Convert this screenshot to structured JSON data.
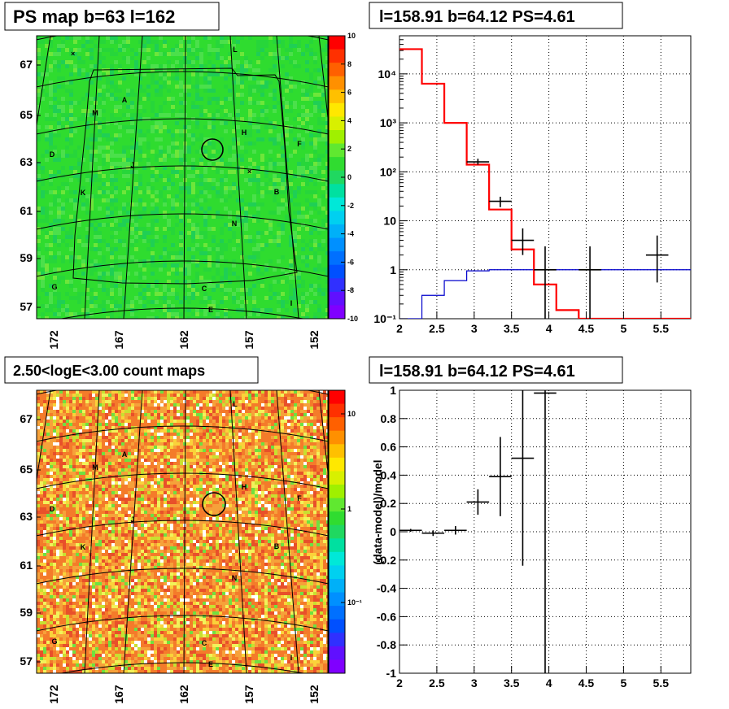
{
  "panels": {
    "ps_map": {
      "title": "PS map b=63 l=162",
      "y_ticks": [
        "67",
        "65",
        "63",
        "61",
        "59",
        "57"
      ],
      "x_ticks": [
        "172",
        "167",
        "162",
        "157",
        "152"
      ],
      "colorbar_ticks": [
        "10",
        "8",
        "6",
        "4",
        "2",
        "0",
        "-2",
        "-4",
        "-6",
        "-8",
        "-10"
      ]
    },
    "count_map": {
      "title": "2.50<logE<3.00 count maps",
      "y_ticks": [
        "67",
        "65",
        "63",
        "61",
        "59",
        "57"
      ],
      "x_ticks": [
        "172",
        "167",
        "162",
        "157",
        "152"
      ],
      "colorbar_ticks": [
        "10",
        "1",
        "10⁻¹"
      ]
    },
    "region_labels": [
      "L",
      "A",
      "M",
      "H",
      "F",
      "D",
      "J",
      "K",
      "B",
      "N",
      "G",
      "C",
      "I",
      "E"
    ]
  },
  "chart_data": [
    {
      "type": "line",
      "title": "l=158.91 b=64.12 PS=4.61",
      "xlabel": "",
      "ylabel": "",
      "yscale": "log",
      "xlim": [
        2,
        5.9
      ],
      "ylim": [
        0.1,
        60000
      ],
      "x_ticks": [
        "2",
        "2.5",
        "3",
        "3.5",
        "4",
        "4.5",
        "5",
        "5.5"
      ],
      "y_ticks": [
        "10⁻¹",
        "1",
        "10",
        "10²",
        "10³",
        "10⁴"
      ],
      "grid": true,
      "series": [
        {
          "color": "#ff0000",
          "bin_edges": [
            2.0,
            2.3,
            2.6,
            2.9,
            3.2,
            3.5,
            3.8,
            4.1,
            4.4,
            5.9
          ],
          "values": [
            32000,
            6300,
            1000,
            140,
            17,
            2.6,
            0.5,
            0.15,
            0.1
          ]
        },
        {
          "color": "#0000cc",
          "bin_edges": [
            2.0,
            2.3,
            2.6,
            2.9,
            3.2,
            3.5,
            3.8,
            4.1,
            4.4,
            5.9
          ],
          "values": [
            0.1,
            0.3,
            0.6,
            0.95,
            1.0,
            1.0,
            1.0,
            1.0,
            1.0
          ]
        },
        {
          "color": "#000000",
          "points": [
            {
              "x": 3.05,
              "xerr": 0.15,
              "y": 160,
              "ylo": 140,
              "yhi": 185
            },
            {
              "x": 3.35,
              "xerr": 0.15,
              "y": 25,
              "ylo": 19,
              "yhi": 31
            },
            {
              "x": 3.65,
              "xerr": 0.15,
              "y": 4,
              "ylo": 2,
              "yhi": 7
            },
            {
              "x": 3.95,
              "xerr": 0.15,
              "y": 1,
              "ylo": 0.1,
              "yhi": 3
            },
            {
              "x": 4.55,
              "xerr": 0.15,
              "y": 1,
              "ylo": 0.1,
              "yhi": 3
            },
            {
              "x": 5.45,
              "xerr": 0.15,
              "y": 2,
              "ylo": 0.55,
              "yhi": 5
            }
          ]
        }
      ]
    },
    {
      "type": "scatter",
      "title": "l=158.91 b=64.12 PS=4.61",
      "xlabel": "",
      "ylabel": "(data-model)/model",
      "xlim": [
        2,
        5.9
      ],
      "ylim": [
        -1,
        1
      ],
      "x_ticks": [
        "2",
        "2.5",
        "3",
        "3.5",
        "4",
        "4.5",
        "5",
        "5.5"
      ],
      "y_ticks": [
        "-1",
        "-0.8",
        "-0.6",
        "-0.4",
        "-0.2",
        "0",
        "0.2",
        "0.4",
        "0.6",
        "0.8",
        "1"
      ],
      "grid": true,
      "points": [
        {
          "x": 2.15,
          "xerr": 0.15,
          "y": 0.01,
          "ylo": 0.0,
          "yhi": 0.02
        },
        {
          "x": 2.45,
          "xerr": 0.15,
          "y": -0.01,
          "ylo": -0.03,
          "yhi": 0.01
        },
        {
          "x": 2.75,
          "xerr": 0.15,
          "y": 0.01,
          "ylo": -0.02,
          "yhi": 0.04
        },
        {
          "x": 3.05,
          "xerr": 0.15,
          "y": 0.21,
          "ylo": 0.12,
          "yhi": 0.3
        },
        {
          "x": 3.35,
          "xerr": 0.15,
          "y": 0.39,
          "ylo": 0.11,
          "yhi": 0.67
        },
        {
          "x": 3.65,
          "xerr": 0.15,
          "y": 0.52,
          "ylo": -0.24,
          "yhi": 1.0
        },
        {
          "x": 3.95,
          "xerr": 0.15,
          "y": 0.98,
          "ylo": -1.0,
          "yhi": 1.0
        }
      ]
    }
  ]
}
